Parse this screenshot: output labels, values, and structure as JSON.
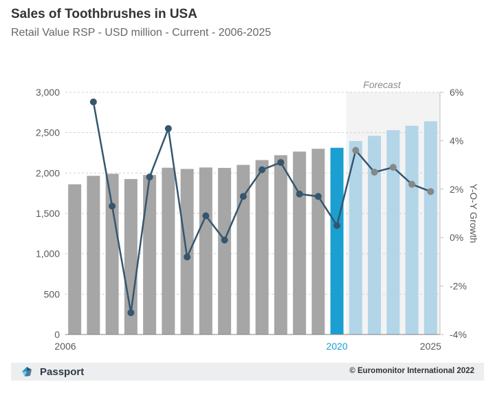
{
  "header": {
    "title": "Sales of Toothbrushes in USA",
    "subtitle": "Retail Value RSP - USD million - Current - 2006-2025"
  },
  "footer": {
    "brand": "Passport",
    "brand_icon": "passport-logo-icon",
    "copyright": "© Euromonitor International 2022"
  },
  "colors": {
    "historic_bar": "#a6a6a6",
    "current_bar": "#1a9fd0",
    "forecast_bar": "#b3d5e8",
    "forecast_shade": "#f3f3f3",
    "growth_line": "#35566e",
    "growth_marker": "#35566e",
    "forecast_marker": "#878787",
    "highlight_label": "#1a9fd0"
  },
  "chart_data": {
    "type": "bar",
    "title": "Sales of Toothbrushes in USA",
    "subtitle": "Retail Value RSP - USD million - Current - 2006-2025",
    "categories": [
      2006,
      2007,
      2008,
      2009,
      2010,
      2011,
      2012,
      2013,
      2014,
      2015,
      2016,
      2017,
      2018,
      2019,
      2020,
      2021,
      2022,
      2023,
      2024,
      2025
    ],
    "x_tick_labels": [
      "2006",
      "2020",
      "2025"
    ],
    "highlight_year": 2020,
    "forecast_start": 2021,
    "forecast_label": "Forecast",
    "series": [
      {
        "type": "bar",
        "axis": "left",
        "values": [
          1860,
          1965,
          1990,
          1925,
          1975,
          2065,
          2050,
          2068,
          2063,
          2100,
          2160,
          2220,
          2265,
          2300,
          2312,
          2395,
          2460,
          2530,
          2585,
          2640
        ]
      },
      {
        "type": "line",
        "axis": "right",
        "values": [
          null,
          5.6,
          1.3,
          -3.1,
          2.5,
          4.5,
          -0.8,
          0.9,
          -0.1,
          1.7,
          2.8,
          3.1,
          1.8,
          1.7,
          0.5,
          3.6,
          2.7,
          2.9,
          2.2,
          1.9
        ]
      }
    ],
    "left_axis": {
      "ylim": [
        0,
        3000
      ],
      "ticks": [
        0,
        500,
        1000,
        1500,
        2000,
        2500,
        3000
      ]
    },
    "right_axis": {
      "label": "Y-O-Y Growth",
      "ylim": [
        -4,
        6
      ],
      "ticks": [
        -4,
        -2,
        0,
        2,
        4,
        6
      ],
      "unit": "%"
    },
    "grid": "horizontal-dashed",
    "legend": "none"
  }
}
